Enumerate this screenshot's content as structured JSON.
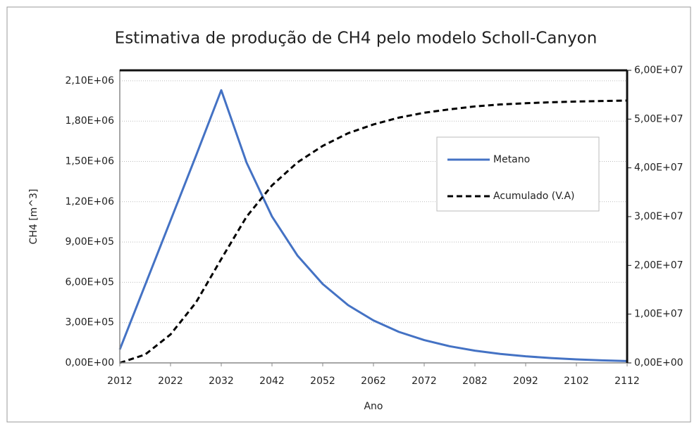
{
  "chart_data": {
    "type": "line",
    "title": "Estimativa de produção de CH4 pelo modelo Scholl-Canyon",
    "x_label": "Ano",
    "y_label": "CH4 [m^3]",
    "x": [
      2012,
      2017,
      2022,
      2027,
      2032,
      2037,
      2042,
      2047,
      2052,
      2057,
      2062,
      2067,
      2072,
      2077,
      2082,
      2087,
      2092,
      2097,
      2102,
      2107,
      2112
    ],
    "xlim": [
      2012,
      2112
    ],
    "xticks": [
      2012,
      2022,
      2032,
      2042,
      2052,
      2062,
      2072,
      2082,
      2092,
      2102,
      2112
    ],
    "ylim": [
      0,
      2178000
    ],
    "yticks": [
      {
        "value": 0,
        "label": "0,00E+00"
      },
      {
        "value": 300000,
        "label": "3,00E+05"
      },
      {
        "value": 600000,
        "label": "6,00E+05"
      },
      {
        "value": 900000,
        "label": "9,00E+05"
      },
      {
        "value": 1200000,
        "label": "1,20E+06"
      },
      {
        "value": 1500000,
        "label": "1,50E+06"
      },
      {
        "value": 1800000,
        "label": "1,80E+06"
      },
      {
        "value": 2100000,
        "label": "2,10E+06"
      }
    ],
    "y2lim": [
      0,
      60000000
    ],
    "y2ticks": [
      {
        "value": 0,
        "label": "0,00E+00"
      },
      {
        "value": 10000000,
        "label": "1,00E+07"
      },
      {
        "value": 20000000,
        "label": "2,00E+07"
      },
      {
        "value": 30000000,
        "label": "3,00E+07"
      },
      {
        "value": 40000000,
        "label": "4,00E+07"
      },
      {
        "value": 50000000,
        "label": "5,00E+07"
      },
      {
        "value": 60000000,
        "label": "6,00E+07"
      }
    ],
    "grid": true,
    "legend": "right",
    "series": [
      {
        "name": "Metano",
        "color": "#4472c4",
        "dash": false,
        "values": [
          100000,
          580000,
          1060000,
          1540000,
          2030000,
          1490000,
          1090000,
          800000,
          587000,
          430000,
          316000,
          231000,
          170000,
          124000,
          91000,
          67000,
          49000,
          36000,
          26000,
          19000,
          14000
        ]
      },
      {
        "name": "Acumulado (V.A)",
        "color": "#000000",
        "dash": true,
        "axis": "y2",
        "values": [
          0,
          1710000,
          5830000,
          12360000,
          21300000,
          30000000,
          36400000,
          41100000,
          44500000,
          47100000,
          48900000,
          50300000,
          51300000,
          52000000,
          52600000,
          53000000,
          53250000,
          53450000,
          53600000,
          53700000,
          53800000
        ]
      }
    ]
  }
}
